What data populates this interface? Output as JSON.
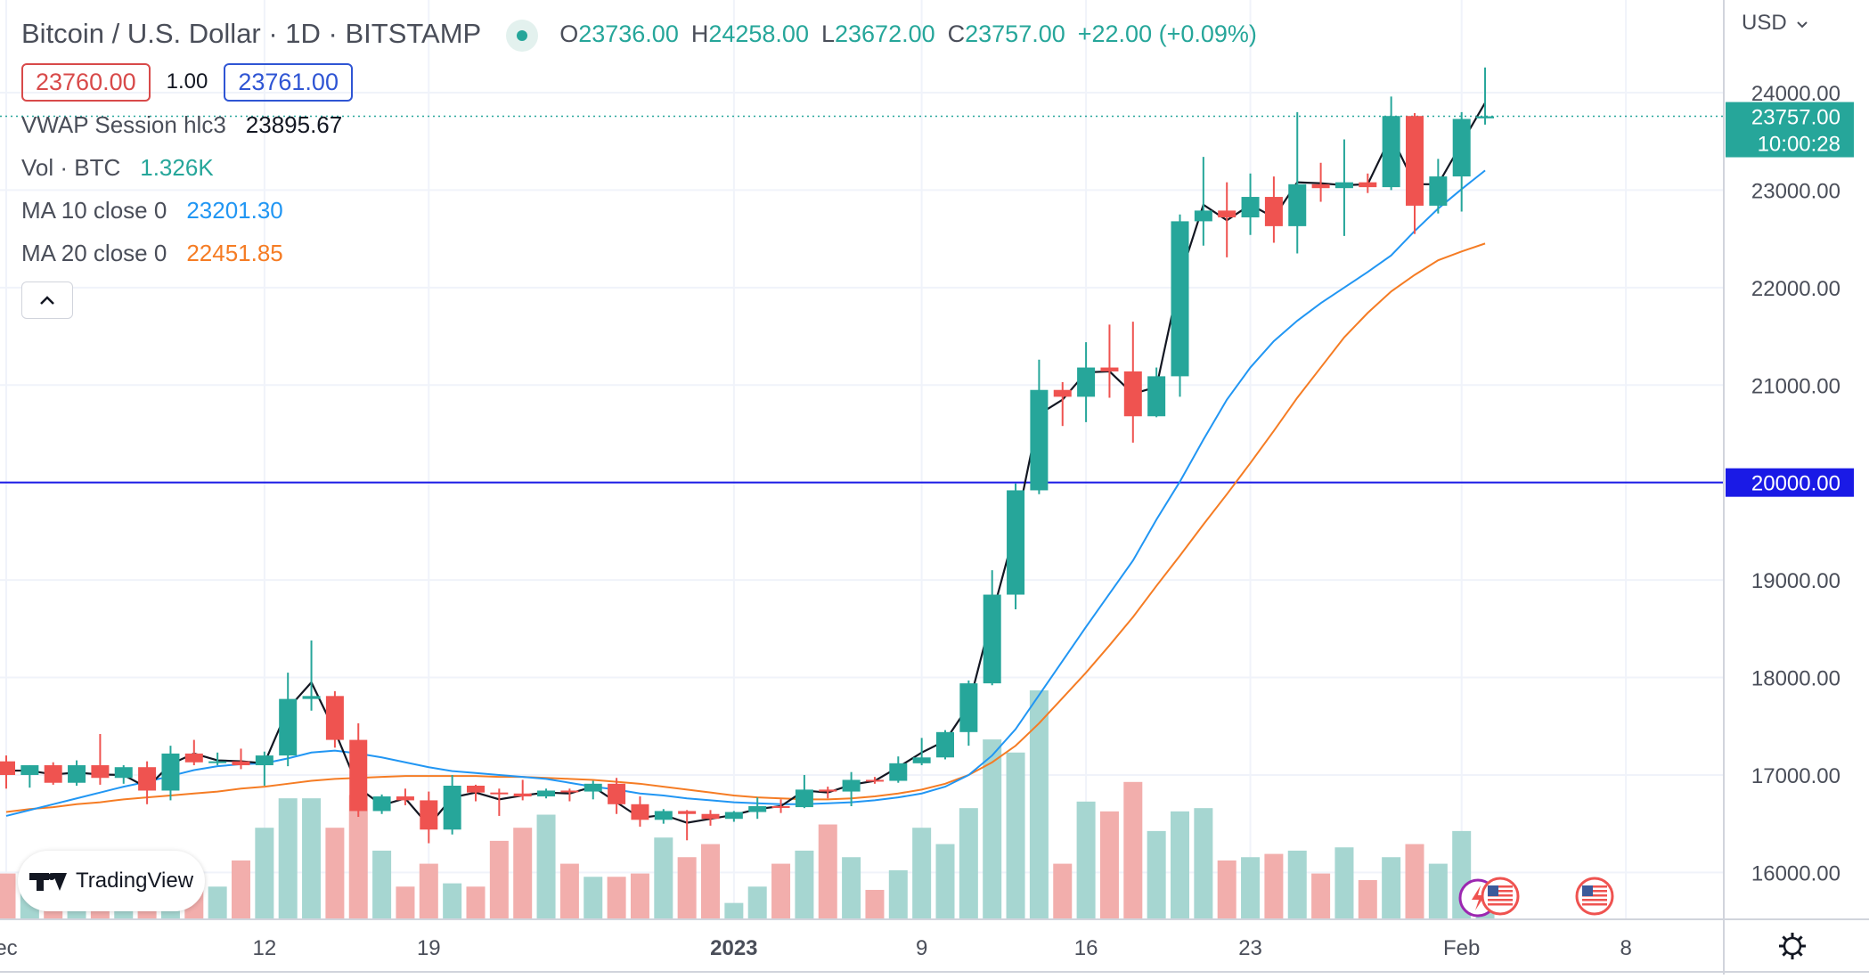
{
  "legend": {
    "title": "Bitcoin / U.S. Dollar · 1D · BITSTAMP",
    "ohlc": [
      {
        "label": "O",
        "value": "23736.00"
      },
      {
        "label": "H",
        "value": "24258.00"
      },
      {
        "label": "L",
        "value": "23672.00"
      },
      {
        "label": "C",
        "value": "23757.00"
      }
    ],
    "change": "+22.00 (+0.09%)",
    "sell_price": "23760.00",
    "spread": "1.00",
    "buy_price": "23761.00"
  },
  "indicators": [
    {
      "name": "VWAP Session hlc3",
      "value": "23895.67",
      "color": "#131722"
    },
    {
      "name": "Vol · BTC",
      "value": "1.326K",
      "color": "#26a69a"
    },
    {
      "name": "MA 10 close 0",
      "value": "23201.30",
      "color": "#2196f3"
    },
    {
      "name": "MA 20 close 0",
      "value": "22451.85",
      "color": "#f57c24"
    }
  ],
  "collapse_icon": "chevron-up-icon",
  "currency": "USD",
  "currency_icon": "chevron-down-icon",
  "settings_icon": "gear-icon",
  "brand": "TradingView",
  "colors": {
    "up": "#26a69a",
    "down": "#ef5350",
    "vol_up": "#a6d6d1",
    "vol_down": "#f2aeac",
    "vwap": "#131722",
    "ma10": "#2196f3",
    "ma20": "#f57c24",
    "hline": "#1a1ae6"
  },
  "chart_data": {
    "type": "candlestick",
    "title": "Bitcoin / U.S. Dollar · 1D · BITSTAMP",
    "ylim": [
      15800,
      24600
    ],
    "y_ticks": [
      "24000.00",
      "23000.00",
      "22000.00",
      "21000.00",
      "20000.00",
      "19000.00",
      "18000.00",
      "17000.00",
      "16000.00"
    ],
    "x_ticks": [
      {
        "label": "ec",
        "date": "2022-12-01"
      },
      {
        "label": "12",
        "date": "2022-12-12"
      },
      {
        "label": "19",
        "date": "2022-12-19"
      },
      {
        "label": "2023",
        "date": "2023-01-01"
      },
      {
        "label": "9",
        "date": "2023-01-09"
      },
      {
        "label": "16",
        "date": "2023-01-16"
      },
      {
        "label": "23",
        "date": "2023-01-23"
      },
      {
        "label": "Feb",
        "date": "2023-02-01"
      },
      {
        "label": "8",
        "date": "2023-02-08"
      }
    ],
    "last_price_label": "23757.00",
    "countdown_label": "10:00:28",
    "horizontal_line": {
      "value": 20000,
      "label": "20000.00"
    },
    "candles": [
      {
        "date": "2022-12-01",
        "o": 17140,
        "h": 17200,
        "l": 16860,
        "c": 17000
      },
      {
        "date": "2022-12-02",
        "o": 17000,
        "h": 17100,
        "l": 16870,
        "c": 17100
      },
      {
        "date": "2022-12-03",
        "o": 17100,
        "h": 17130,
        "l": 16900,
        "c": 16920
      },
      {
        "date": "2022-12-04",
        "o": 16920,
        "h": 17150,
        "l": 16890,
        "c": 17100
      },
      {
        "date": "2022-12-05",
        "o": 17100,
        "h": 17420,
        "l": 16900,
        "c": 16970
      },
      {
        "date": "2022-12-06",
        "o": 16970,
        "h": 17100,
        "l": 16910,
        "c": 17080
      },
      {
        "date": "2022-12-07",
        "o": 17080,
        "h": 17140,
        "l": 16700,
        "c": 16840
      },
      {
        "date": "2022-12-08",
        "o": 16840,
        "h": 17300,
        "l": 16740,
        "c": 17220
      },
      {
        "date": "2022-12-09",
        "o": 17220,
        "h": 17360,
        "l": 17100,
        "c": 17130
      },
      {
        "date": "2022-12-10",
        "o": 17130,
        "h": 17230,
        "l": 17100,
        "c": 17140
      },
      {
        "date": "2022-12-11",
        "o": 17140,
        "h": 17270,
        "l": 17060,
        "c": 17100
      },
      {
        "date": "2022-12-12",
        "o": 17100,
        "h": 17240,
        "l": 16890,
        "c": 17200
      },
      {
        "date": "2022-12-13",
        "o": 17200,
        "h": 18050,
        "l": 17090,
        "c": 17780
      },
      {
        "date": "2022-12-14",
        "o": 17780,
        "h": 18380,
        "l": 17660,
        "c": 17810
      },
      {
        "date": "2022-12-15",
        "o": 17810,
        "h": 17860,
        "l": 17280,
        "c": 17360
      },
      {
        "date": "2022-12-16",
        "o": 17360,
        "h": 17530,
        "l": 16570,
        "c": 16630
      },
      {
        "date": "2022-12-17",
        "o": 16630,
        "h": 16800,
        "l": 16600,
        "c": 16780
      },
      {
        "date": "2022-12-18",
        "o": 16780,
        "h": 16860,
        "l": 16690,
        "c": 16740
      },
      {
        "date": "2022-12-19",
        "o": 16740,
        "h": 16830,
        "l": 16300,
        "c": 16440
      },
      {
        "date": "2022-12-20",
        "o": 16440,
        "h": 17000,
        "l": 16390,
        "c": 16890
      },
      {
        "date": "2022-12-21",
        "o": 16890,
        "h": 16900,
        "l": 16730,
        "c": 16820
      },
      {
        "date": "2022-12-22",
        "o": 16820,
        "h": 16860,
        "l": 16580,
        "c": 16810
      },
      {
        "date": "2022-12-23",
        "o": 16810,
        "h": 16950,
        "l": 16740,
        "c": 16780
      },
      {
        "date": "2022-12-24",
        "o": 16780,
        "h": 16860,
        "l": 16760,
        "c": 16840
      },
      {
        "date": "2022-12-25",
        "o": 16840,
        "h": 16860,
        "l": 16730,
        "c": 16830
      },
      {
        "date": "2022-12-26",
        "o": 16830,
        "h": 16940,
        "l": 16750,
        "c": 16910
      },
      {
        "date": "2022-12-27",
        "o": 16910,
        "h": 16970,
        "l": 16600,
        "c": 16700
      },
      {
        "date": "2022-12-28",
        "o": 16700,
        "h": 16780,
        "l": 16470,
        "c": 16540
      },
      {
        "date": "2022-12-29",
        "o": 16540,
        "h": 16650,
        "l": 16500,
        "c": 16630
      },
      {
        "date": "2022-12-30",
        "o": 16630,
        "h": 16640,
        "l": 16330,
        "c": 16600
      },
      {
        "date": "2022-12-31",
        "o": 16600,
        "h": 16640,
        "l": 16480,
        "c": 16550
      },
      {
        "date": "2023-01-01",
        "o": 16550,
        "h": 16630,
        "l": 16520,
        "c": 16620
      },
      {
        "date": "2023-01-02",
        "o": 16620,
        "h": 16770,
        "l": 16550,
        "c": 16680
      },
      {
        "date": "2023-01-03",
        "o": 16680,
        "h": 16750,
        "l": 16610,
        "c": 16670
      },
      {
        "date": "2023-01-04",
        "o": 16670,
        "h": 17000,
        "l": 16660,
        "c": 16850
      },
      {
        "date": "2023-01-05",
        "o": 16850,
        "h": 16880,
        "l": 16760,
        "c": 16830
      },
      {
        "date": "2023-01-06",
        "o": 16830,
        "h": 17030,
        "l": 16680,
        "c": 16950
      },
      {
        "date": "2023-01-07",
        "o": 16950,
        "h": 16980,
        "l": 16910,
        "c": 16940
      },
      {
        "date": "2023-01-08",
        "o": 16940,
        "h": 17190,
        "l": 16920,
        "c": 17120
      },
      {
        "date": "2023-01-09",
        "o": 17120,
        "h": 17380,
        "l": 17100,
        "c": 17180
      },
      {
        "date": "2023-01-10",
        "o": 17180,
        "h": 17460,
        "l": 17160,
        "c": 17440
      },
      {
        "date": "2023-01-11",
        "o": 17440,
        "h": 17970,
        "l": 17300,
        "c": 17940
      },
      {
        "date": "2023-01-12",
        "o": 17940,
        "h": 19100,
        "l": 17920,
        "c": 18850
      },
      {
        "date": "2023-01-13",
        "o": 18850,
        "h": 19990,
        "l": 18700,
        "c": 19920
      },
      {
        "date": "2023-01-14",
        "o": 19920,
        "h": 21260,
        "l": 19880,
        "c": 20950
      },
      {
        "date": "2023-01-15",
        "o": 20950,
        "h": 21030,
        "l": 20580,
        "c": 20880
      },
      {
        "date": "2023-01-16",
        "o": 20880,
        "h": 21440,
        "l": 20620,
        "c": 21180
      },
      {
        "date": "2023-01-17",
        "o": 21180,
        "h": 21620,
        "l": 20870,
        "c": 21140
      },
      {
        "date": "2023-01-18",
        "o": 21140,
        "h": 21650,
        "l": 20410,
        "c": 20680
      },
      {
        "date": "2023-01-19",
        "o": 20680,
        "h": 21180,
        "l": 20670,
        "c": 21090
      },
      {
        "date": "2023-01-20",
        "o": 21090,
        "h": 22750,
        "l": 20880,
        "c": 22680
      },
      {
        "date": "2023-01-21",
        "o": 22680,
        "h": 23340,
        "l": 22430,
        "c": 22790
      },
      {
        "date": "2023-01-22",
        "o": 22790,
        "h": 23080,
        "l": 22310,
        "c": 22720
      },
      {
        "date": "2023-01-23",
        "o": 22720,
        "h": 23170,
        "l": 22540,
        "c": 22930
      },
      {
        "date": "2023-01-24",
        "o": 22930,
        "h": 23140,
        "l": 22460,
        "c": 22630
      },
      {
        "date": "2023-01-25",
        "o": 22630,
        "h": 23800,
        "l": 22350,
        "c": 23060
      },
      {
        "date": "2023-01-26",
        "o": 23060,
        "h": 23280,
        "l": 22880,
        "c": 23020
      },
      {
        "date": "2023-01-27",
        "o": 23020,
        "h": 23520,
        "l": 22530,
        "c": 23080
      },
      {
        "date": "2023-01-28",
        "o": 23080,
        "h": 23170,
        "l": 22970,
        "c": 23030
      },
      {
        "date": "2023-01-29",
        "o": 23030,
        "h": 23960,
        "l": 23000,
        "c": 23760
      },
      {
        "date": "2023-01-30",
        "o": 23760,
        "h": 23790,
        "l": 22550,
        "c": 22840
      },
      {
        "date": "2023-01-31",
        "o": 22840,
        "h": 23320,
        "l": 22760,
        "c": 23140
      },
      {
        "date": "2023-02-01",
        "o": 23140,
        "h": 23800,
        "l": 22780,
        "c": 23730
      },
      {
        "date": "2023-02-02",
        "o": 23736,
        "h": 24258,
        "l": 23672,
        "c": 23757
      }
    ],
    "vwap": [
      17045,
      17045,
      17005,
      17025,
      17005,
      17000,
      16870,
      17110,
      17220,
      17150,
      17140,
      17120,
      17680,
      17950,
      17450,
      16870,
      16690,
      16760,
      16480,
      16770,
      16820,
      16750,
      16790,
      16820,
      16810,
      16880,
      16720,
      16560,
      16590,
      16510,
      16550,
      16590,
      16650,
      16680,
      16840,
      16820,
      16900,
      16940,
      17080,
      17230,
      17350,
      17710,
      18640,
      19530,
      20700,
      20850,
      21130,
      21140,
      20910,
      20980,
      22100,
      22850,
      22690,
      22850,
      22720,
      23080,
      23070,
      23050,
      23060,
      23560,
      23060,
      23060,
      23480,
      23895.67
    ],
    "ma10": [
      16580,
      16640,
      16700,
      16760,
      16820,
      16880,
      16930,
      16990,
      17050,
      17090,
      17110,
      17120,
      17170,
      17230,
      17250,
      17220,
      17180,
      17130,
      17080,
      17040,
      17020,
      17000,
      16980,
      16960,
      16920,
      16880,
      16850,
      16810,
      16790,
      16760,
      16740,
      16720,
      16710,
      16700,
      16700,
      16710,
      16720,
      16740,
      16770,
      16810,
      16880,
      17000,
      17200,
      17470,
      17820,
      18170,
      18520,
      18860,
      19200,
      19620,
      20010,
      20440,
      20850,
      21180,
      21450,
      21660,
      21840,
      22000,
      22160,
      22330,
      22580,
      22810,
      23010,
      23201.3
    ],
    "ma20": [
      16620,
      16650,
      16670,
      16700,
      16720,
      16750,
      16770,
      16790,
      16810,
      16830,
      16860,
      16880,
      16910,
      16940,
      16960,
      16970,
      16980,
      16990,
      16990,
      16990,
      16990,
      16980,
      16980,
      16970,
      16960,
      16950,
      16930,
      16910,
      16880,
      16850,
      16820,
      16790,
      16770,
      16760,
      16750,
      16750,
      16760,
      16780,
      16810,
      16850,
      16910,
      17000,
      17130,
      17300,
      17530,
      17790,
      18050,
      18330,
      18620,
      18940,
      19250,
      19570,
      19880,
      20200,
      20530,
      20870,
      21180,
      21490,
      21740,
      21960,
      22130,
      22280,
      22370,
      22451.85
    ],
    "volume": [
      14,
      15,
      5,
      13,
      6,
      5,
      7,
      5,
      14,
      10,
      18,
      28,
      37,
      37,
      28,
      38,
      21,
      10,
      17,
      11,
      10,
      24,
      28,
      32,
      17,
      13,
      13,
      14,
      25,
      19,
      23,
      5,
      10,
      17,
      21,
      29,
      19,
      9,
      15,
      28,
      23,
      34,
      55,
      51,
      70,
      17,
      36,
      33,
      42,
      27,
      33,
      34,
      18,
      19,
      20,
      21,
      14,
      22,
      12,
      19,
      23,
      17,
      27,
      9
    ],
    "volume_unit": "relative"
  }
}
